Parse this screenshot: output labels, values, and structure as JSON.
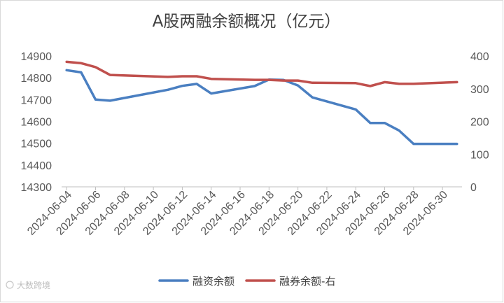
{
  "chart_data": {
    "type": "line",
    "title": "A股两融余额概况（亿元）",
    "x": [
      "2024-06-04",
      "2024-06-05",
      "2024-06-06",
      "2024-06-07",
      "2024-06-11",
      "2024-06-12",
      "2024-06-13",
      "2024-06-14",
      "2024-06-17",
      "2024-06-18",
      "2024-06-19",
      "2024-06-20",
      "2024-06-21",
      "2024-06-24",
      "2024-06-25",
      "2024-06-26",
      "2024-06-27",
      "2024-06-28",
      "2024-07-01"
    ],
    "x_ticks": [
      "2024-06-04",
      "2024-06-06",
      "2024-06-08",
      "2024-06-10",
      "2024-06-12",
      "2024-06-14",
      "2024-06-16",
      "2024-06-18",
      "2024-06-20",
      "2024-06-22",
      "2024-06-24",
      "2024-06-26",
      "2024-06-28",
      "2024-06-30"
    ],
    "y_left": {
      "ticks": [
        "14300",
        "14400",
        "14500",
        "14600",
        "14700",
        "14800",
        "14900"
      ],
      "ylim": [
        14300,
        14900
      ]
    },
    "y_right": {
      "ticks": [
        "0",
        "100",
        "200",
        "300",
        "400"
      ],
      "ylim": [
        0,
        400
      ]
    },
    "series": [
      {
        "name": "融资余额",
        "axis": "left",
        "color": "#4a7fc1",
        "values": [
          14835,
          14825,
          14700,
          14695,
          14745,
          14763,
          14772,
          14728,
          14762,
          14792,
          14790,
          14765,
          14710,
          14655,
          14593,
          14593,
          14558,
          14497,
          14497
        ]
      },
      {
        "name": "融券余额-右",
        "axis": "right",
        "color": "#c0504d",
        "values": [
          382,
          378,
          366,
          342,
          336,
          338,
          338,
          330,
          327,
          327,
          325,
          325,
          318,
          317,
          308,
          320,
          315,
          315,
          320
        ]
      }
    ],
    "legend_position": "bottom",
    "grid": false
  },
  "watermark": {
    "text": "大数跨境"
  }
}
